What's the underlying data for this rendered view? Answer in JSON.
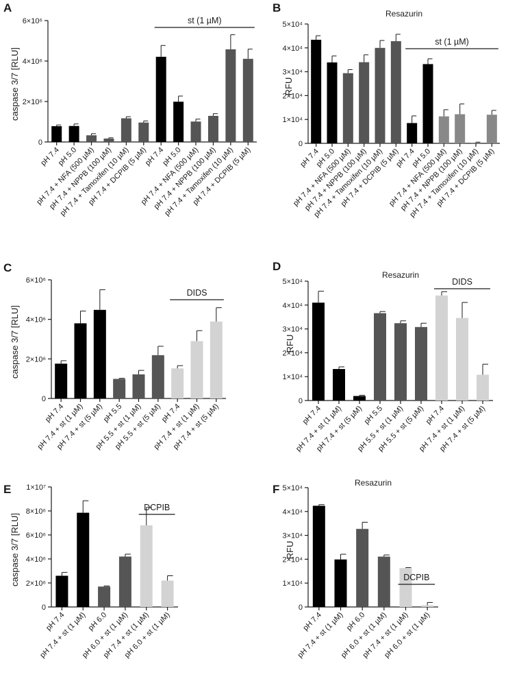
{
  "colors": {
    "black": "#000000",
    "dark": "#555555",
    "mid": "#888888",
    "light": "#d3d3d3",
    "line": "#1a1a1a"
  },
  "chart_data": [
    {
      "panel": "A",
      "type": "bar",
      "title": "",
      "ylabel": "caspase 3/7 [RLU]",
      "ylim": [
        0,
        6000000
      ],
      "grid": false,
      "yticks": [
        {
          "value": 0,
          "label": "0"
        },
        {
          "value": 2000000,
          "label": "2×10⁶"
        },
        {
          "value": 4000000,
          "label": "4×10⁶"
        },
        {
          "value": 6000000,
          "label": "6×10⁶"
        }
      ],
      "categories": [
        "pH 7.4",
        "pH 5.0",
        "pH 7.4 + NFA (500 µM)",
        "pH 7.4 + NPPB (100 µM)",
        "pH 7.4 + Tamoxifen (10 µM)",
        "pH 7.4 + DCPIB (5 µM)",
        "pH 7.4",
        "pH 5.0",
        "pH 7.4 + NFA (500 µM)",
        "pH 7.4 + NPPB (100 µM)",
        "pH 7.4 + Tamoxifen (10 µM)",
        "pH 7.4 + DCPIB (5 µM)"
      ],
      "values": [
        780000,
        790000,
        330000,
        170000,
        1170000,
        960000,
        4210000,
        1990000,
        1010000,
        1290000,
        4580000,
        4110000
      ],
      "errors": [
        60000,
        100000,
        80000,
        40000,
        80000,
        80000,
        560000,
        280000,
        120000,
        110000,
        720000,
        480000
      ],
      "bar_colors": [
        "black",
        "black",
        "dark",
        "dark",
        "dark",
        "dark",
        "black",
        "black",
        "dark",
        "dark",
        "dark",
        "dark"
      ],
      "bracket": {
        "label": "st (1 µM)",
        "from": 6,
        "to": 11
      }
    },
    {
      "panel": "B",
      "type": "bar",
      "title": "Resazurin",
      "ylabel": "RFU",
      "ylim": [
        0,
        50000
      ],
      "grid": false,
      "yticks": [
        {
          "value": 0,
          "label": "0"
        },
        {
          "value": 10000,
          "label": "1×10⁴"
        },
        {
          "value": 20000,
          "label": "2×10⁴"
        },
        {
          "value": 30000,
          "label": "3×10⁴"
        },
        {
          "value": 40000,
          "label": "4×10⁴"
        },
        {
          "value": 50000,
          "label": "5×10⁴"
        }
      ],
      "categories": [
        "pH 7.4",
        "pH 5.0",
        "pH 7.4 + NFA (500 µM)",
        "pH 7.4 + NPPB (100 µM)",
        "pH 7.4 + Tamoxifen (10 µM)",
        "pH 7.4 + DCPIB (5 µM)",
        "pH 7.4",
        "pH 5.0",
        "pH 7.4 + NFA (500 µM)",
        "pH 7.4 + NPPB (100 µM)",
        "pH 7.4 + Tamoxifen (10 µM)",
        "pH 7.4 + DCPIB (5 µM)"
      ],
      "values": [
        43400,
        33900,
        29400,
        34000,
        40000,
        42800,
        8500,
        33200,
        11300,
        12200,
        300,
        12000
      ],
      "errors": [
        1700,
        2700,
        1500,
        3100,
        3100,
        2900,
        3000,
        2200,
        2800,
        4300,
        200,
        1800
      ],
      "bar_colors": [
        "black",
        "black",
        "dark",
        "dark",
        "dark",
        "dark",
        "black",
        "black",
        "mid",
        "mid",
        "mid",
        "mid"
      ],
      "bracket": {
        "label": "st (1 µM)",
        "from": 6,
        "to": 11
      }
    },
    {
      "panel": "C",
      "type": "bar",
      "title": "",
      "ylabel": "caspase 3/7 [RLU]",
      "ylim": [
        0,
        6000000
      ],
      "grid": false,
      "yticks": [
        {
          "value": 0,
          "label": "0"
        },
        {
          "value": 2000000,
          "label": "2×10⁶"
        },
        {
          "value": 4000000,
          "label": "4×10⁶"
        },
        {
          "value": 6000000,
          "label": "6×10⁶"
        }
      ],
      "categories": [
        "pH 7.4",
        "pH 7.4 + st (1 µM)",
        "pH 7.4 + st (5 µM)",
        "pH 5.5",
        "pH 5.5 + st (1 µM)",
        "pH 5.5 + st (5 µM)",
        "pH 7.4",
        "pH 7.4 + st (1 µM)",
        "pH 7.4 + st (5 µM)"
      ],
      "values": [
        1760000,
        3800000,
        4480000,
        990000,
        1220000,
        2190000,
        1520000,
        2900000,
        3890000
      ],
      "errors": [
        150000,
        620000,
        1020000,
        30000,
        200000,
        450000,
        140000,
        530000,
        700000
      ],
      "bar_colors": [
        "black",
        "black",
        "black",
        "dark",
        "dark",
        "dark",
        "light",
        "light",
        "light"
      ],
      "bracket": {
        "label": "DIDS",
        "from": 6,
        "to": 8
      }
    },
    {
      "panel": "D",
      "type": "bar",
      "title": "Resazurin",
      "ylabel": "RFU",
      "ylim": [
        0,
        50000
      ],
      "grid": false,
      "yticks": [
        {
          "value": 0,
          "label": "0"
        },
        {
          "value": 10000,
          "label": "1×10⁴"
        },
        {
          "value": 20000,
          "label": "2×10⁴"
        },
        {
          "value": 30000,
          "label": "3×10⁴"
        },
        {
          "value": 40000,
          "label": "4×10⁴"
        },
        {
          "value": 50000,
          "label": "5×10⁴"
        }
      ],
      "categories": [
        "pH 7.4",
        "pH 7.4 + st (1 µM)",
        "pH 7.4 + st (5 µM)",
        "pH 5.5",
        "pH 5.5 + st (1 µM)",
        "pH 5.5 + st (5 µM)",
        "pH 7.4",
        "pH 7.4 + st (1 µM)",
        "pH 7.4 + st (5 µM)"
      ],
      "values": [
        41000,
        13200,
        1900,
        36600,
        32400,
        30800,
        44000,
        34600,
        10800
      ],
      "errors": [
        4800,
        900,
        300,
        700,
        1000,
        1600,
        1600,
        6500,
        4400
      ],
      "bar_colors": [
        "black",
        "black",
        "black",
        "dark",
        "dark",
        "dark",
        "light",
        "light",
        "light"
      ],
      "bracket": {
        "label": "DIDS",
        "from": 6,
        "to": 8
      }
    },
    {
      "panel": "E",
      "type": "bar",
      "title": "",
      "ylabel": "caspase 3/7 [RLU]",
      "ylim": [
        0,
        10000000
      ],
      "grid": false,
      "yticks": [
        {
          "value": 0,
          "label": "0"
        },
        {
          "value": 2000000,
          "label": "2×10⁶"
        },
        {
          "value": 4000000,
          "label": "4×10⁶"
        },
        {
          "value": 6000000,
          "label": "6×10⁶"
        },
        {
          "value": 8000000,
          "label": "8×10⁶"
        },
        {
          "value": 10000000,
          "label": "1×10⁷"
        }
      ],
      "categories": [
        "pH 7.4",
        "pH 7.4 + st (1 µM)",
        "pH 6.0",
        "pH 6.0 + st (1 µM)",
        "pH 7.4 + st (1 µM)",
        "pH 6.0 + st (1 µM)"
      ],
      "values": [
        2600000,
        7850000,
        1700000,
        4200000,
        6800000,
        2200000
      ],
      "errors": [
        280000,
        1000000,
        50000,
        200000,
        1500000,
        400000
      ],
      "bar_colors": [
        "black",
        "black",
        "dark",
        "dark",
        "light",
        "light"
      ],
      "bracket": {
        "label": "DCPIB",
        "from": 4,
        "to": 5
      }
    },
    {
      "panel": "F",
      "type": "bar",
      "title": "Resazurin",
      "ylabel": "RFU",
      "ylim": [
        0,
        50000
      ],
      "grid": false,
      "yticks": [
        {
          "value": 0,
          "label": "0"
        },
        {
          "value": 10000,
          "label": "1×10⁴"
        },
        {
          "value": 20000,
          "label": "2×10⁴"
        },
        {
          "value": 30000,
          "label": "3×10⁴"
        },
        {
          "value": 40000,
          "label": "4×10⁴"
        },
        {
          "value": 50000,
          "label": "5×10⁴"
        }
      ],
      "categories": [
        "pH 7.4",
        "pH 7.4 + st (1 µM)",
        "pH 6.0",
        "pH 6.0 + st (1 µM)",
        "pH 7.4 + st (1 µM)",
        "pH 6.0 + st (1 µM)"
      ],
      "values": [
        42400,
        19900,
        32700,
        21100,
        16300,
        700
      ],
      "errors": [
        500,
        2200,
        2800,
        700,
        200,
        1200
      ],
      "bar_colors": [
        "black",
        "black",
        "dark",
        "dark",
        "light",
        "light"
      ],
      "bracket": {
        "label": "DCPIB",
        "from": 4,
        "to": 5
      }
    }
  ]
}
